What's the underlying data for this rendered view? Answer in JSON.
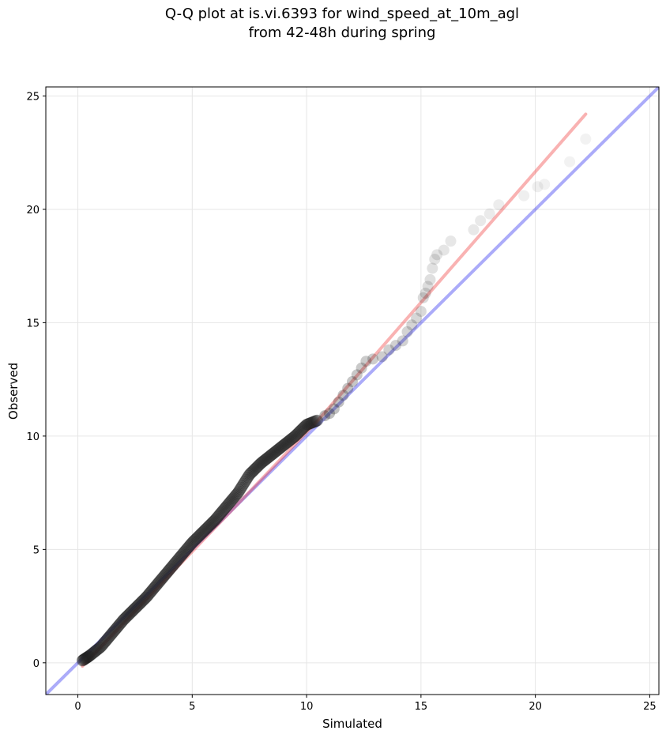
{
  "chart_data": {
    "type": "scatter",
    "title": "Q-Q plot at is.vi.6393 for wind_speed_at_10m_agl",
    "subtitle": "from 42-48h during spring",
    "xlabel": "Simulated",
    "ylabel": "Observed",
    "xlim": [
      -1.4,
      25.4
    ],
    "ylim": [
      -1.4,
      25.4
    ],
    "xticks": [
      0,
      5,
      10,
      15,
      20,
      25
    ],
    "yticks": [
      0,
      5,
      10,
      15,
      20,
      25
    ],
    "grid": true,
    "colors": {
      "points": "#222222",
      "reference_line": "#0000ee",
      "fit_line": "#ee2222",
      "grid": "#e6e6e6"
    },
    "reference_line": {
      "x": [
        -1.4,
        25.4
      ],
      "y": [
        -1.4,
        25.4
      ]
    },
    "fit_line": {
      "x": [
        0.2,
        10.5,
        22.2
      ],
      "y": [
        -0.15,
        10.7,
        24.2
      ]
    },
    "dense_band": {
      "x": [
        0.2,
        0.5,
        1.0,
        1.5,
        2.0,
        2.5,
        3.0,
        3.5,
        4.0,
        4.5,
        5.0,
        5.5,
        6.0,
        6.5,
        7.0,
        7.5,
        8.0,
        8.5,
        9.0,
        9.5,
        10.0,
        10.5
      ],
      "y": [
        0.1,
        0.3,
        0.7,
        1.3,
        1.9,
        2.4,
        2.9,
        3.5,
        4.1,
        4.7,
        5.3,
        5.8,
        6.3,
        6.9,
        7.5,
        8.3,
        8.8,
        9.2,
        9.6,
        10.0,
        10.5,
        10.7
      ]
    },
    "tail_points": {
      "x": [
        10.8,
        11.0,
        11.2,
        11.4,
        11.6,
        11.8,
        12.0,
        12.2,
        12.4,
        12.6,
        12.9,
        13.3,
        13.6,
        13.9,
        14.2,
        14.4,
        14.6,
        14.8,
        15.0,
        15.1,
        15.2,
        15.3,
        15.4,
        15.5,
        15.6,
        15.7,
        16.0,
        16.3,
        17.3,
        17.6,
        18.0,
        18.4,
        19.5,
        20.1,
        20.4,
        21.5,
        22.2
      ],
      "y": [
        10.9,
        11.0,
        11.2,
        11.5,
        11.8,
        12.1,
        12.4,
        12.7,
        13.0,
        13.3,
        13.4,
        13.5,
        13.8,
        14.0,
        14.2,
        14.6,
        14.9,
        15.2,
        15.5,
        16.1,
        16.3,
        16.6,
        16.9,
        17.4,
        17.8,
        18.0,
        18.2,
        18.6,
        19.1,
        19.5,
        19.8,
        20.2,
        20.6,
        21.0,
        21.1,
        22.1,
        23.1
      ]
    }
  }
}
